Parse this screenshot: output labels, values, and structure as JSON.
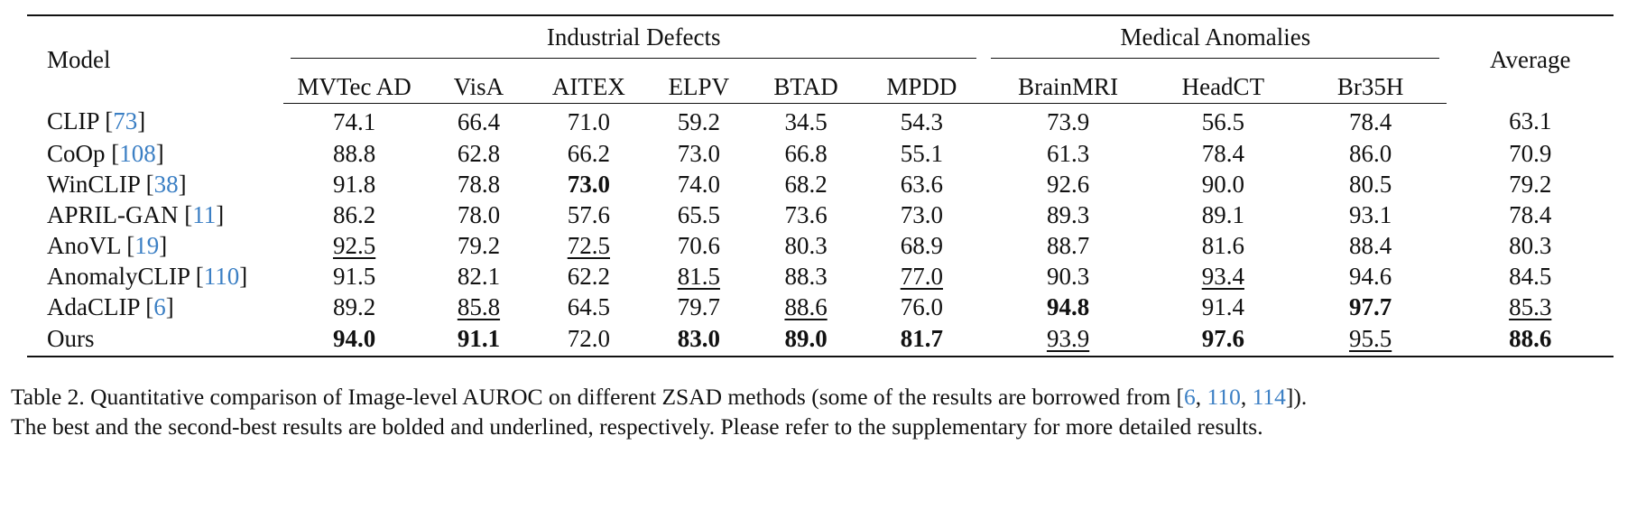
{
  "table": {
    "model_header": "Model",
    "average_header": "Average",
    "groups": [
      {
        "label": "Industrial Defects",
        "span": 6
      },
      {
        "label": "Medical Anomalies",
        "span": 3
      }
    ],
    "columns": [
      "MVTec AD",
      "VisA",
      "AITEX",
      "ELPV",
      "BTAD",
      "MPDD",
      "BrainMRI",
      "HeadCT",
      "Br35H"
    ],
    "rows": [
      {
        "model": "CLIP",
        "ref": "73",
        "values": [
          "74.1",
          "66.4",
          "71.0",
          "59.2",
          "34.5",
          "54.3",
          "73.9",
          "56.5",
          "78.4",
          "63.1"
        ],
        "styles": [
          "",
          "",
          "",
          "",
          "",
          "",
          "",
          "",
          "",
          ""
        ]
      },
      {
        "model": "CoOp",
        "ref": "108",
        "values": [
          "88.8",
          "62.8",
          "66.2",
          "73.0",
          "66.8",
          "55.1",
          "61.3",
          "78.4",
          "86.0",
          "70.9"
        ],
        "styles": [
          "",
          "",
          "",
          "",
          "",
          "",
          "",
          "",
          "",
          ""
        ]
      },
      {
        "model": "WinCLIP",
        "ref": "38",
        "values": [
          "91.8",
          "78.8",
          "73.0",
          "74.0",
          "68.2",
          "63.6",
          "92.6",
          "90.0",
          "80.5",
          "79.2"
        ],
        "styles": [
          "",
          "",
          "bold",
          "",
          "",
          "",
          "",
          "",
          "",
          ""
        ]
      },
      {
        "model": "APRIL-GAN",
        "ref": "11",
        "values": [
          "86.2",
          "78.0",
          "57.6",
          "65.5",
          "73.6",
          "73.0",
          "89.3",
          "89.1",
          "93.1",
          "78.4"
        ],
        "styles": [
          "",
          "",
          "",
          "",
          "",
          "",
          "",
          "",
          "",
          ""
        ]
      },
      {
        "model": "AnoVL",
        "ref": "19",
        "values": [
          "92.5",
          "79.2",
          "72.5",
          "70.6",
          "80.3",
          "68.9",
          "88.7",
          "81.6",
          "88.4",
          "80.3"
        ],
        "styles": [
          "underline",
          "",
          "underline",
          "",
          "",
          "",
          "",
          "",
          "",
          ""
        ]
      },
      {
        "model": "AnomalyCLIP",
        "ref": "110",
        "values": [
          "91.5",
          "82.1",
          "62.2",
          "81.5",
          "88.3",
          "77.0",
          "90.3",
          "93.4",
          "94.6",
          "84.5"
        ],
        "styles": [
          "",
          "",
          "",
          "underline",
          "",
          "underline",
          "",
          "underline",
          "",
          ""
        ]
      },
      {
        "model": "AdaCLIP",
        "ref": "6",
        "values": [
          "89.2",
          "85.8",
          "64.5",
          "79.7",
          "88.6",
          "76.0",
          "94.8",
          "91.4",
          "97.7",
          "85.3"
        ],
        "styles": [
          "",
          "underline",
          "",
          "",
          "underline",
          "",
          "bold",
          "",
          "bold",
          "underline"
        ]
      },
      {
        "model": "Ours",
        "ref": "",
        "values": [
          "94.0",
          "91.1",
          "72.0",
          "83.0",
          "89.0",
          "81.7",
          "93.9",
          "97.6",
          "95.5",
          "88.6"
        ],
        "styles": [
          "bold",
          "bold",
          "",
          "bold",
          "bold",
          "bold",
          "underline",
          "bold",
          "underline",
          "bold"
        ]
      }
    ]
  },
  "caption": {
    "line1_pre": "Table 2. Quantitative comparison of Image-level AUROC on different ZSAD methods (some of the results are borrowed from [",
    "line1_refs": [
      "6",
      "110",
      "114"
    ],
    "line1_post": "]).",
    "line2": "The best and the second-best results are bolded and underlined, respectively. Please refer to the supplementary for more detailed results."
  },
  "colors": {
    "citation": "#3b7fc4",
    "text": "#111111"
  }
}
